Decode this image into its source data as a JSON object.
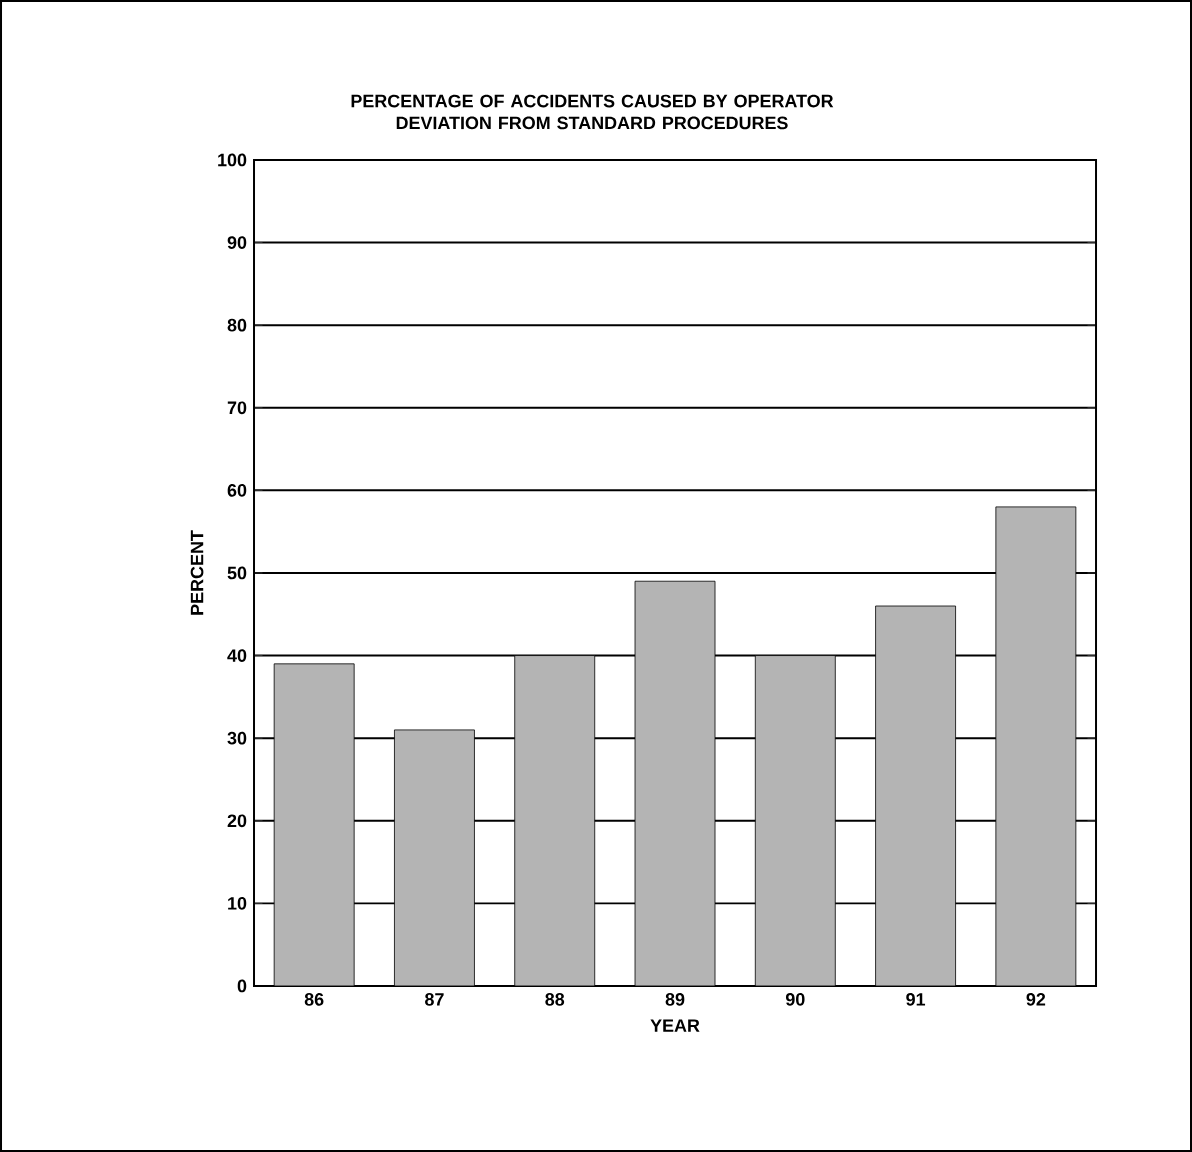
{
  "chart_data": {
    "type": "bar",
    "title": "PERCENTAGE OF ACCIDENTS CAUSED BY OPERATOR DEVIATION FROM STANDARD PROCEDURES",
    "xlabel": "YEAR",
    "ylabel": "PERCENT",
    "categories": [
      "86",
      "87",
      "88",
      "89",
      "90",
      "91",
      "92"
    ],
    "values": [
      39,
      31,
      40,
      49,
      40,
      46,
      58
    ],
    "color": "#b4b4b4",
    "ylim": [
      0,
      100
    ],
    "yticks": [
      0,
      10,
      20,
      30,
      40,
      50,
      60,
      70,
      80,
      90,
      100
    ],
    "grid": "y"
  }
}
